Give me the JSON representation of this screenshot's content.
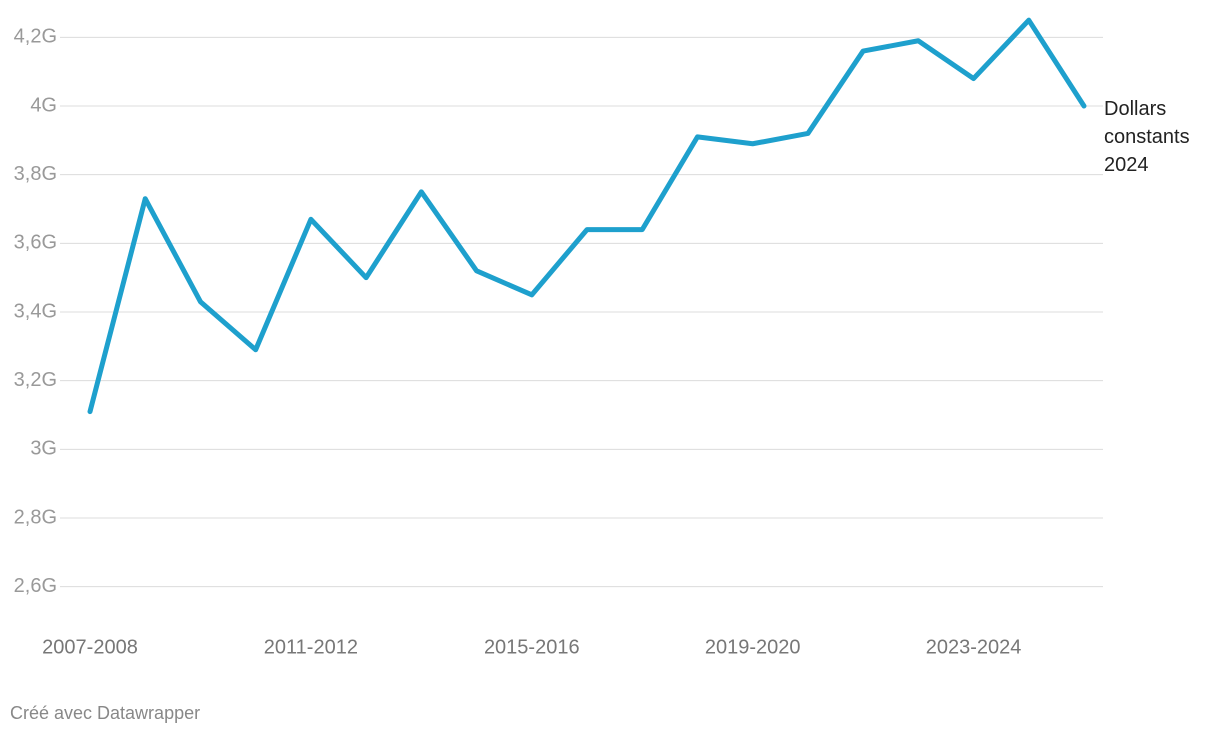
{
  "chart_data": {
    "type": "line",
    "categories": [
      "2007-2008",
      null,
      null,
      null,
      "2011-2012",
      null,
      null,
      null,
      "2015-2016",
      null,
      null,
      null,
      "2019-2020",
      null,
      null,
      null,
      "2023-2024",
      null,
      null
    ],
    "series": [
      {
        "name": "Dollars constants 2024",
        "color": "#1ea0cd",
        "values": [
          3.11,
          3.73,
          3.43,
          3.29,
          3.67,
          3.5,
          3.75,
          3.52,
          3.45,
          3.64,
          3.64,
          3.91,
          3.89,
          3.92,
          4.16,
          4.19,
          4.08,
          4.25,
          4.0
        ]
      }
    ],
    "ylim": [
      2.5,
      4.3
    ],
    "yticks": [
      {
        "value": 2.6,
        "label": "2,6G"
      },
      {
        "value": 2.8,
        "label": "2,8G"
      },
      {
        "value": 3,
        "label": "3G"
      },
      {
        "value": 3.2,
        "label": "3,2G"
      },
      {
        "value": 3.4,
        "label": "3,4G"
      },
      {
        "value": 3.6,
        "label": "3,6G"
      },
      {
        "value": 3.8,
        "label": "3,8G"
      },
      {
        "value": 4,
        "label": "4G"
      },
      {
        "value": 4.2,
        "label": "4,2G"
      }
    ],
    "grid": true,
    "footer": "Créé avec Datawrapper"
  }
}
